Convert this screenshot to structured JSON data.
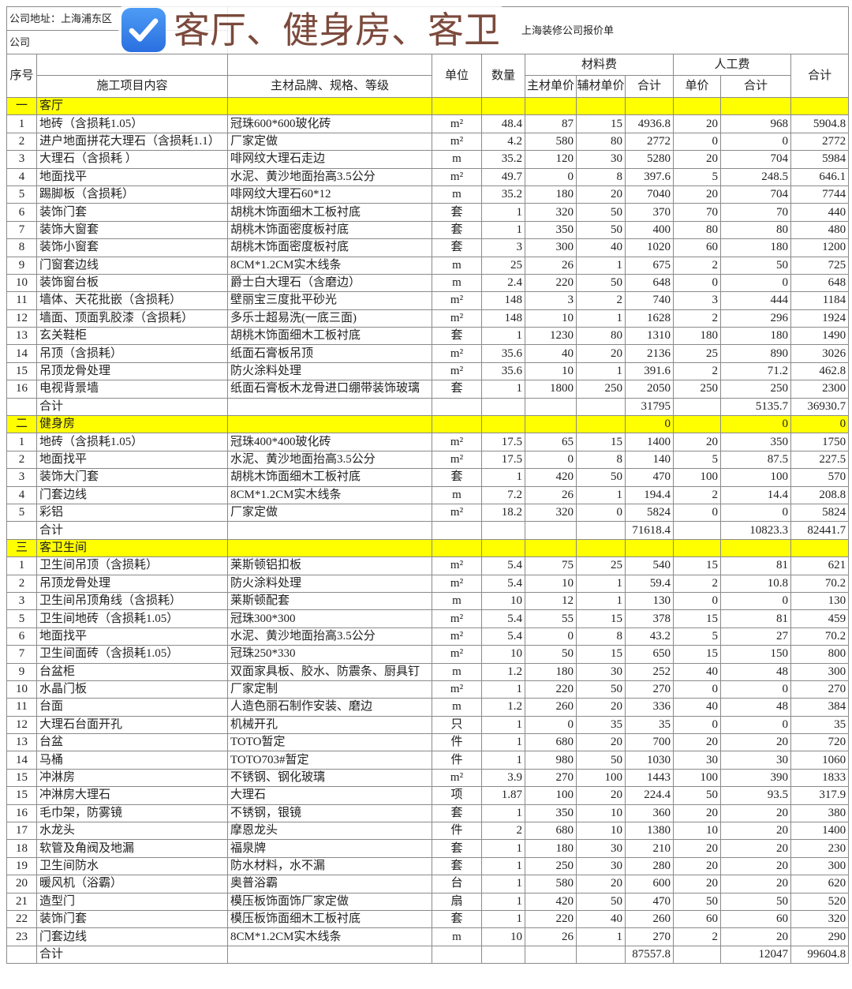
{
  "banner": {
    "text": "客厅、健身房、客卫",
    "icon": "checkbox-checked-icon",
    "text_color": "#7b4a3c",
    "icon_color": "#2a6fe0"
  },
  "sheet": {
    "company_address": "公司地址：上海浦东区",
    "company_phone": "公司",
    "title": "上海装修公司报价单",
    "section_color": "#ffff00",
    "headers": {
      "no": "序号",
      "item": "施工项目内容",
      "brand": "主材品牌、规格、等级",
      "unit": "单位",
      "qty": "数量",
      "material": "材料费",
      "main_price": "主材单价",
      "aux_price": "辅材单价",
      "mat_total": "合计",
      "labor": "人工费",
      "labor_unit": "单价",
      "labor_total": "合计",
      "total": "合计"
    },
    "sections": [
      {
        "no": "一",
        "name": "客厅",
        "totals": [
          "",
          "",
          "",
          ""
        ],
        "rows": [
          [
            "1",
            "地砖（含损耗1.05）",
            "冠珠600*600玻化砖",
            "m²",
            "48.4",
            "87",
            "15",
            "4936.8",
            "20",
            "968",
            "5904.8"
          ],
          [
            "2",
            "进户地面拼花大理石（含损耗1.1）",
            "厂家定做",
            "m²",
            "4.2",
            "580",
            "80",
            "2772",
            "0",
            "0",
            "2772"
          ],
          [
            "3",
            "大理石（含损耗 ）",
            "啡网纹大理石走边",
            "m",
            "35.2",
            "120",
            "30",
            "5280",
            "20",
            "704",
            "5984"
          ],
          [
            "4",
            "地面找平",
            "水泥、黄沙地面抬高3.5公分",
            "m²",
            "49.7",
            "0",
            "8",
            "397.6",
            "5",
            "248.5",
            "646.1"
          ],
          [
            "5",
            "踢脚板（含损耗）",
            "啡网纹大理石60*12",
            "m",
            "35.2",
            "180",
            "20",
            "7040",
            "20",
            "704",
            "7744"
          ],
          [
            "6",
            "装饰门套",
            "胡桃木饰面细木工板衬底",
            "套",
            "1",
            "320",
            "50",
            "370",
            "70",
            "70",
            "440"
          ],
          [
            "7",
            "装饰大窗套",
            "胡桃木饰面密度板衬底",
            "套",
            "1",
            "350",
            "50",
            "400",
            "80",
            "80",
            "480"
          ],
          [
            "8",
            "装饰小窗套",
            "胡桃木饰面密度板衬底",
            "套",
            "3",
            "300",
            "40",
            "1020",
            "60",
            "180",
            "1200"
          ],
          [
            "9",
            "门窗套边线",
            "8CM*1.2CM实木线条",
            "m",
            "25",
            "26",
            "1",
            "675",
            "2",
            "50",
            "725"
          ],
          [
            "10",
            "装饰窗台板",
            "爵士白大理石（含磨边）",
            "m",
            "2.4",
            "220",
            "50",
            "648",
            "0",
            "0",
            "648"
          ],
          [
            "11",
            "墙体、天花批嵌（含损耗）",
            "壁丽宝三度批平砂光",
            "m²",
            "148",
            "3",
            "2",
            "740",
            "3",
            "444",
            "1184"
          ],
          [
            "12",
            "墙面、顶面乳胶漆（含损耗）",
            "多乐士超易洗(一底三面)",
            "m²",
            "148",
            "10",
            "1",
            "1628",
            "2",
            "296",
            "1924"
          ],
          [
            "13",
            "玄关鞋柜",
            "胡桃木饰面细木工板衬底",
            "套",
            "1",
            "1230",
            "80",
            "1310",
            "180",
            "180",
            "1490"
          ],
          [
            "14",
            "吊顶（含损耗）",
            "纸面石膏板吊顶",
            "m²",
            "35.6",
            "40",
            "20",
            "2136",
            "25",
            "890",
            "3026"
          ],
          [
            "15",
            "吊顶龙骨处理",
            "防火涂料处理",
            "m²",
            "35.6",
            "10",
            "1",
            "391.6",
            "2",
            "71.2",
            "462.8"
          ],
          [
            "16",
            "电视背景墙",
            "纸面石膏板木龙骨进口绷带装饰玻璃",
            "套",
            "1",
            "1800",
            "250",
            "2050",
            "250",
            "250",
            "2300"
          ]
        ],
        "subtotal": {
          "label": "合计",
          "mat_total": "31795",
          "labor_total": "5135.7",
          "total": "36930.7"
        }
      },
      {
        "no": "二",
        "name": "健身房",
        "totals": [
          "0",
          "",
          "0",
          "0"
        ],
        "rows": [
          [
            "1",
            "地砖（含损耗1.05）",
            "冠珠400*400玻化砖",
            "m²",
            "17.5",
            "65",
            "15",
            "1400",
            "20",
            "350",
            "1750"
          ],
          [
            "2",
            "地面找平",
            "水泥、黄沙地面抬高3.5公分",
            "m²",
            "17.5",
            "0",
            "8",
            "140",
            "5",
            "87.5",
            "227.5"
          ],
          [
            "3",
            "装饰大门套",
            "胡桃木饰面细木工板衬底",
            "套",
            "1",
            "420",
            "50",
            "470",
            "100",
            "100",
            "570"
          ],
          [
            "4",
            "门套边线",
            "8CM*1.2CM实木线条",
            "m",
            "7.2",
            "26",
            "1",
            "194.4",
            "2",
            "14.4",
            "208.8"
          ],
          [
            "5",
            "彩铝",
            "厂家定做",
            "m²",
            "18.2",
            "320",
            "0",
            "5824",
            "0",
            "0",
            "5824"
          ]
        ],
        "subtotal": {
          "label": "合计",
          "mat_total": "71618.4",
          "labor_total": "10823.3",
          "total": "82441.7"
        }
      },
      {
        "no": "三",
        "name": "客卫生间",
        "totals": [
          "",
          "",
          "",
          ""
        ],
        "rows": [
          [
            "1",
            "卫生间吊顶（含损耗）",
            "莱斯顿铝扣板",
            "m²",
            "5.4",
            "75",
            "25",
            "540",
            "15",
            "81",
            "621"
          ],
          [
            "2",
            "吊顶龙骨处理",
            "防火涂料处理",
            "m²",
            "5.4",
            "10",
            "1",
            "59.4",
            "2",
            "10.8",
            "70.2"
          ],
          [
            "3",
            "卫生间吊顶角线（含损耗）",
            "莱斯顿配套",
            "m",
            "10",
            "12",
            "1",
            "130",
            "0",
            "0",
            "130"
          ],
          [
            "5",
            "卫生间地砖（含损耗1.05）",
            " 冠珠300*300",
            "m²",
            "5.4",
            "55",
            "15",
            "378",
            "15",
            "81",
            "459"
          ],
          [
            "6",
            "地面找平",
            "水泥、黄沙地面抬高3.5公分",
            "m²",
            "5.4",
            "0",
            "8",
            "43.2",
            "5",
            "27",
            "70.2"
          ],
          [
            "7",
            "卫生间面砖（含损耗1.05）",
            " 冠珠250*330",
            "m²",
            "10",
            "50",
            "15",
            "650",
            "15",
            "150",
            "800"
          ],
          [
            "9",
            "台盆柜",
            "双面家具板、胶水、防震条、厨具钉",
            "m",
            "1.2",
            "180",
            "30",
            "252",
            "40",
            "48",
            "300"
          ],
          [
            "10",
            "水晶门板",
            "厂家定制",
            "m²",
            "1",
            "220",
            "50",
            "270",
            "0",
            "0",
            "270"
          ],
          [
            "11",
            "台面",
            "人造色丽石制作安装、磨边",
            "m",
            "1.2",
            "260",
            "20",
            "336",
            "40",
            "48",
            "384"
          ],
          [
            "12",
            "大理石台面开孔",
            "机械开孔",
            "只",
            "1",
            "0",
            "35",
            "35",
            "0",
            "0",
            "35"
          ],
          [
            "13",
            "台盆",
            "TOTO暂定",
            "件",
            "1",
            "680",
            "20",
            "700",
            "20",
            "20",
            "720"
          ],
          [
            "14",
            "马桶",
            "TOTO703#暂定",
            "件",
            "1",
            "980",
            "50",
            "1030",
            "30",
            "30",
            "1060"
          ],
          [
            "15",
            "冲淋房",
            "不锈钢、钢化玻璃",
            "m²",
            "3.9",
            "270",
            "100",
            "1443",
            "100",
            "390",
            "1833"
          ],
          [
            "15",
            "冲淋房大理石",
            "大理石",
            "项",
            "1.87",
            "100",
            "20",
            "224.4",
            "50",
            "93.5",
            "317.9"
          ],
          [
            "16",
            "毛巾架，防雾镜",
            " 不锈钢，银镜",
            "套",
            "1",
            "350",
            "10",
            "360",
            "20",
            "20",
            "380"
          ],
          [
            "17",
            "水龙头",
            "摩恩龙头",
            "件",
            "2",
            "680",
            "10",
            "1380",
            "10",
            "20",
            "1400"
          ],
          [
            "18",
            "软管及角阀及地漏",
            "福泉牌",
            "套",
            "1",
            "180",
            "30",
            "210",
            "20",
            "20",
            "230"
          ],
          [
            "19",
            "卫生间防水",
            "防水材料，水不漏",
            "套",
            "1",
            "250",
            "30",
            "280",
            "20",
            "20",
            "300"
          ],
          [
            "20",
            "暖风机（浴霸）",
            "奥普浴霸",
            "台",
            "1",
            "580",
            "20",
            "600",
            "20",
            "20",
            "620"
          ],
          [
            "21",
            "造型门",
            "模压板饰面饰厂家定做",
            "扇",
            "1",
            "420",
            "50",
            "470",
            "50",
            "50",
            "520"
          ],
          [
            "22",
            "装饰门套",
            "模压板饰面细木工板衬底",
            "套",
            "1",
            "220",
            "40",
            "260",
            "60",
            "60",
            "320"
          ],
          [
            "23",
            "门套边线",
            "8CM*1.2CM实木线条",
            "m",
            "10",
            "26",
            "1",
            "270",
            "2",
            "20",
            "290"
          ]
        ],
        "subtotal": {
          "label": "合计",
          "mat_total": "87557.8",
          "labor_total": "12047",
          "total": "99604.8"
        }
      }
    ]
  }
}
